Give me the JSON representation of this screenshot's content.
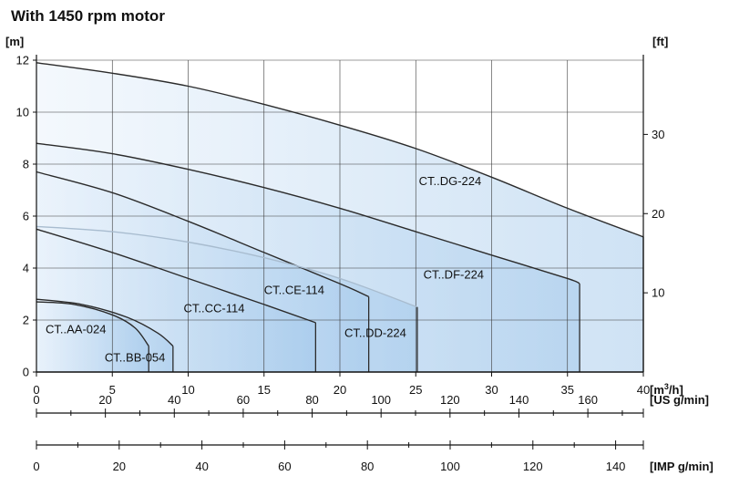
{
  "page_title": "With 1450 rpm motor",
  "chart_data": {
    "type": "line",
    "title": "With 1450 rpm motor",
    "x_unit": "[m³/h]",
    "y_unit_left": "[m]",
    "y_unit_right": "[ft]",
    "xlim": [
      0,
      40
    ],
    "ylim": [
      0,
      12
    ],
    "x_ticks": [
      0,
      5,
      10,
      15,
      20,
      25,
      30,
      35,
      40
    ],
    "y_ticks": [
      0,
      2,
      4,
      6,
      8,
      10,
      12
    ],
    "ft_ticks": [
      10,
      20,
      30
    ],
    "grid": true,
    "series": [
      {
        "name": "CT..DG-224",
        "x": [
          0,
          5,
          10,
          15,
          20,
          25,
          30,
          35,
          40
        ],
        "y": [
          11.9,
          11.5,
          11.0,
          10.3,
          9.5,
          8.6,
          7.5,
          6.3,
          5.2
        ]
      },
      {
        "name": "CT..DF-224",
        "x": [
          0,
          5,
          10,
          15,
          20,
          25,
          30,
          35,
          35.8
        ],
        "y": [
          8.8,
          8.4,
          7.8,
          7.1,
          6.3,
          5.4,
          4.5,
          3.6,
          3.4
        ]
      },
      {
        "name": "CT..CE-114",
        "x": [
          0,
          5,
          10,
          15,
          20,
          21.9
        ],
        "y": [
          7.7,
          6.9,
          5.8,
          4.6,
          3.4,
          2.9
        ]
      },
      {
        "name": "CT..DD-224",
        "x": [
          0,
          5,
          10,
          15,
          20,
          25.1
        ],
        "y": [
          5.6,
          5.4,
          5.0,
          4.4,
          3.6,
          2.5
        ]
      },
      {
        "name": "CT..CC-114",
        "x": [
          0,
          5,
          10,
          15,
          18.4
        ],
        "y": [
          5.5,
          4.6,
          3.6,
          2.6,
          1.9
        ]
      },
      {
        "name": "CT..BB-054",
        "x": [
          0,
          3,
          6,
          8,
          9
        ],
        "y": [
          2.8,
          2.6,
          2.1,
          1.5,
          1.0
        ]
      },
      {
        "name": "CT..AA-024",
        "x": [
          0,
          2.5,
          5,
          6.5,
          7.4
        ],
        "y": [
          2.7,
          2.6,
          2.2,
          1.7,
          1.0
        ]
      }
    ],
    "curve_labels": [
      {
        "text": "CT..DG-224",
        "x": 25.2,
        "y": 7.2
      },
      {
        "text": "CT..DF-224",
        "x": 25.5,
        "y": 3.6
      },
      {
        "text": "CT..CE-114",
        "x": 15.0,
        "y": 3.0
      },
      {
        "text": "CT..CC-114",
        "x": 9.7,
        "y": 2.3
      },
      {
        "text": "CT..DD-224",
        "x": 20.3,
        "y": 1.35
      },
      {
        "text": "CT..AA-024",
        "x": 0.6,
        "y": 1.5
      },
      {
        "text": "CT..BB-054",
        "x": 4.5,
        "y": 0.4
      }
    ],
    "secondary_axes": [
      {
        "unit": "[US g/min]",
        "ticks": [
          0,
          20,
          40,
          60,
          80,
          100,
          120,
          140,
          160
        ],
        "max": 176.1
      },
      {
        "unit": "[IMP g/min]",
        "ticks": [
          0,
          20,
          40,
          60,
          80,
          100,
          120,
          140
        ],
        "max": 146.7
      }
    ]
  }
}
